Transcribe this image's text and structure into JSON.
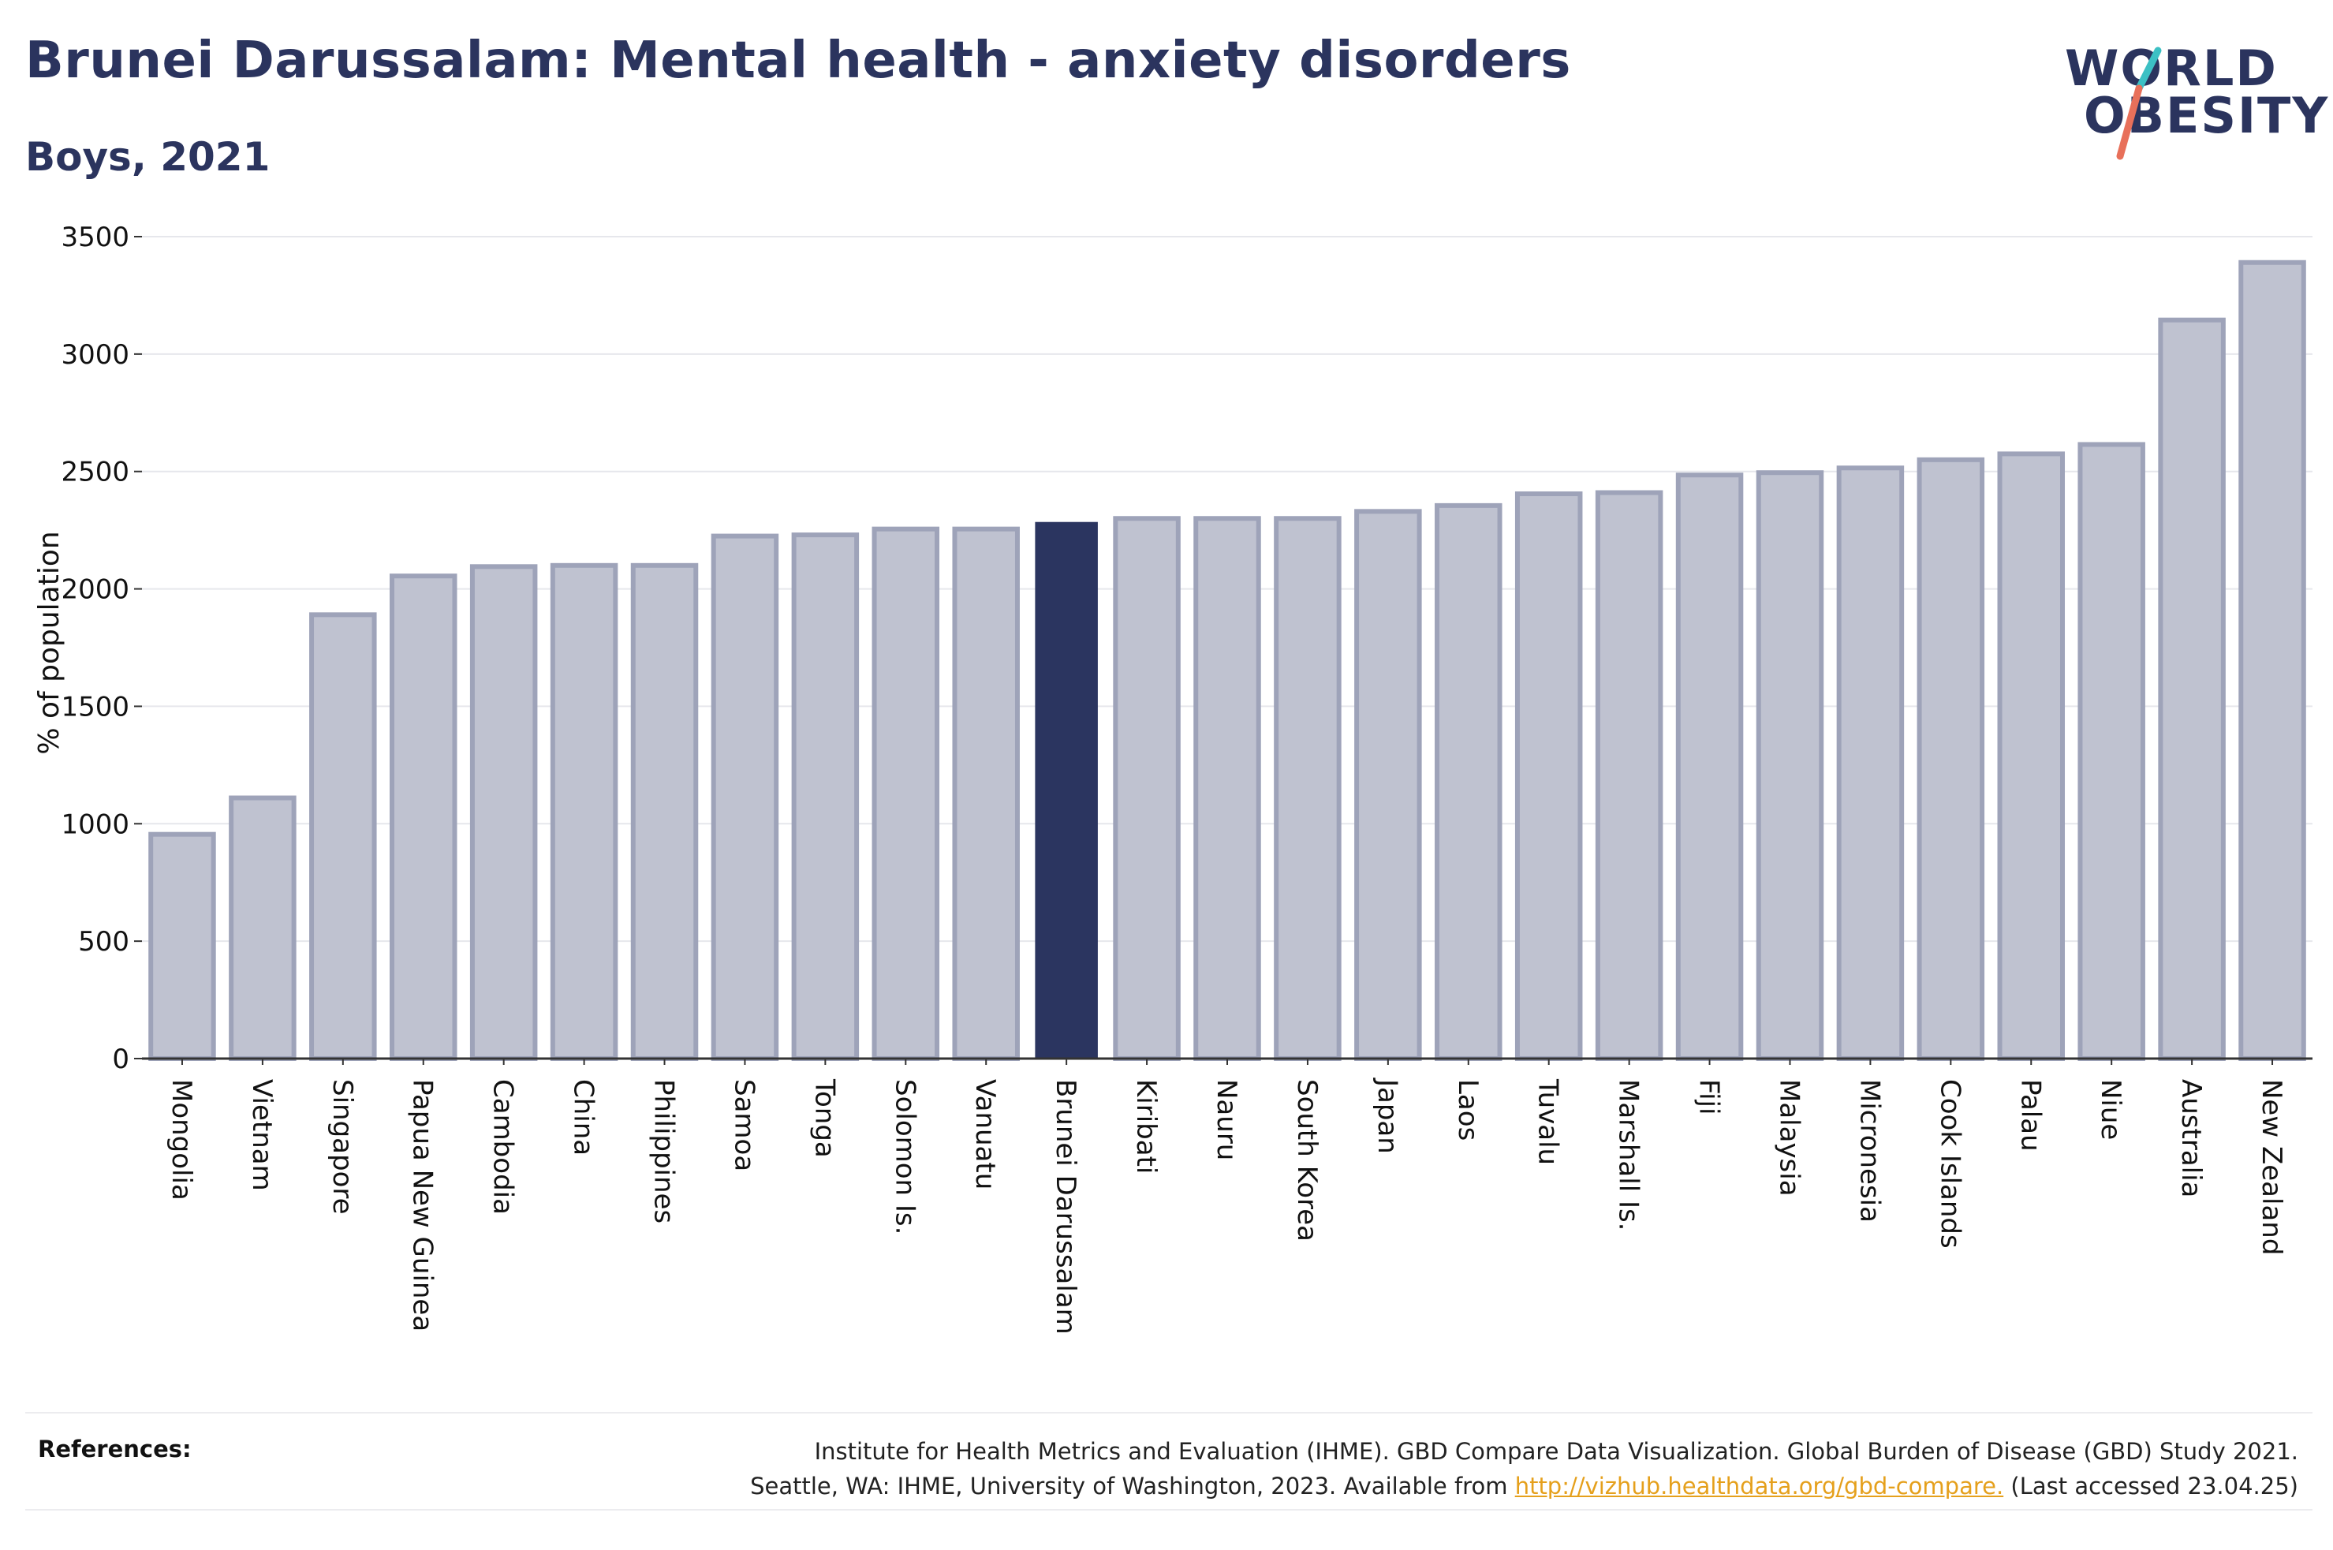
{
  "header": {
    "title": "Brunei Darussalam: Mental health - anxiety disorders",
    "subtitle": "Boys, 2021"
  },
  "logo": {
    "line1": "WORLD",
    "line2": "OBESITY",
    "slash_colors": [
      "#3cc0c4",
      "#e8705a"
    ]
  },
  "colors": {
    "bar": "#bfc2d0",
    "bar_edge": "#9ea3b9",
    "highlight": "#2b3560",
    "text": "#2b345e",
    "link": "#e5a01c"
  },
  "chart_data": {
    "type": "bar",
    "title": "Brunei Darussalam: Mental health - anxiety disorders",
    "subtitle": "Boys, 2021",
    "ylabel": "% of population",
    "xlabel": "",
    "ylim": [
      0,
      3500
    ],
    "yticks": [
      0,
      500,
      1000,
      1500,
      2000,
      2500,
      3000,
      3500
    ],
    "grid": true,
    "highlight": "Brunei Darussalam",
    "categories": [
      "Mongolia",
      "Vietnam",
      "Singapore",
      "Papua New Guinea",
      "Cambodia",
      "China",
      "Philippines",
      "Samoa",
      "Tonga",
      "Solomon Is.",
      "Vanuatu",
      "Brunei Darussalam",
      "Kiribati",
      "Nauru",
      "South Korea",
      "Japan",
      "Laos",
      "Tuvalu",
      "Marshall Is.",
      "Fiji",
      "Malaysia",
      "Micronesia",
      "Cook Islands",
      "Palau",
      "Niue",
      "Australia",
      "New Zealand"
    ],
    "values": [
      955,
      1110,
      1890,
      2055,
      2095,
      2100,
      2100,
      2225,
      2230,
      2255,
      2255,
      2285,
      2300,
      2300,
      2300,
      2330,
      2355,
      2405,
      2410,
      2485,
      2495,
      2515,
      2550,
      2575,
      2615,
      3145,
      3390
    ]
  },
  "references": {
    "label": "References:",
    "line1": "Institute for Health Metrics and Evaluation (IHME). GBD Compare Data Visualization. Global Burden of Disease (GBD) Study 2021.",
    "line2_prefix": "Seattle, WA: IHME, University of Washington, 2023. Available from ",
    "link_text": "http://vizhub.healthdata.org/gbd-compare.",
    "line2_suffix": " (Last accessed 23.04.25)"
  }
}
